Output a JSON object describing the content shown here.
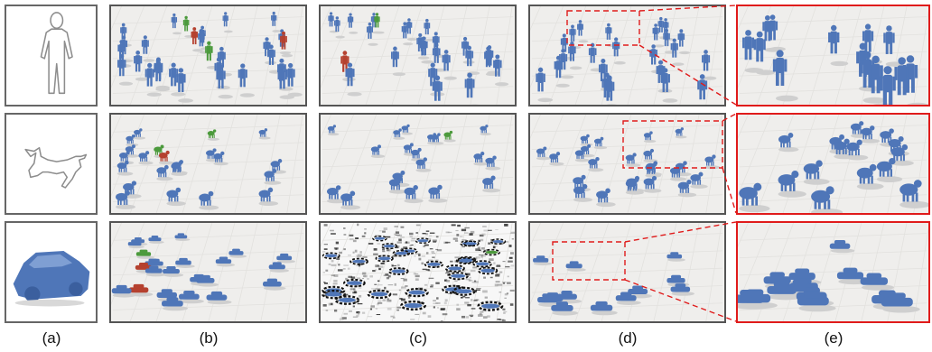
{
  "figure": {
    "captions": [
      "(a)",
      "(b)",
      "(c)",
      "(d)",
      "(e)"
    ],
    "rows": [
      {
        "query": "human-sketch",
        "description": "humans"
      },
      {
        "query": "cat-sketch",
        "description": "quadrupeds"
      },
      {
        "query": "car-model",
        "description": "cars"
      }
    ],
    "colors": {
      "figure_blue": "#4f76b8",
      "highlight_green": "#4c9a3c",
      "highlight_red": "#b5412f",
      "zoom_border": "#e01b1b",
      "panel_border": "#555555",
      "ground": "#efeeec"
    }
  }
}
